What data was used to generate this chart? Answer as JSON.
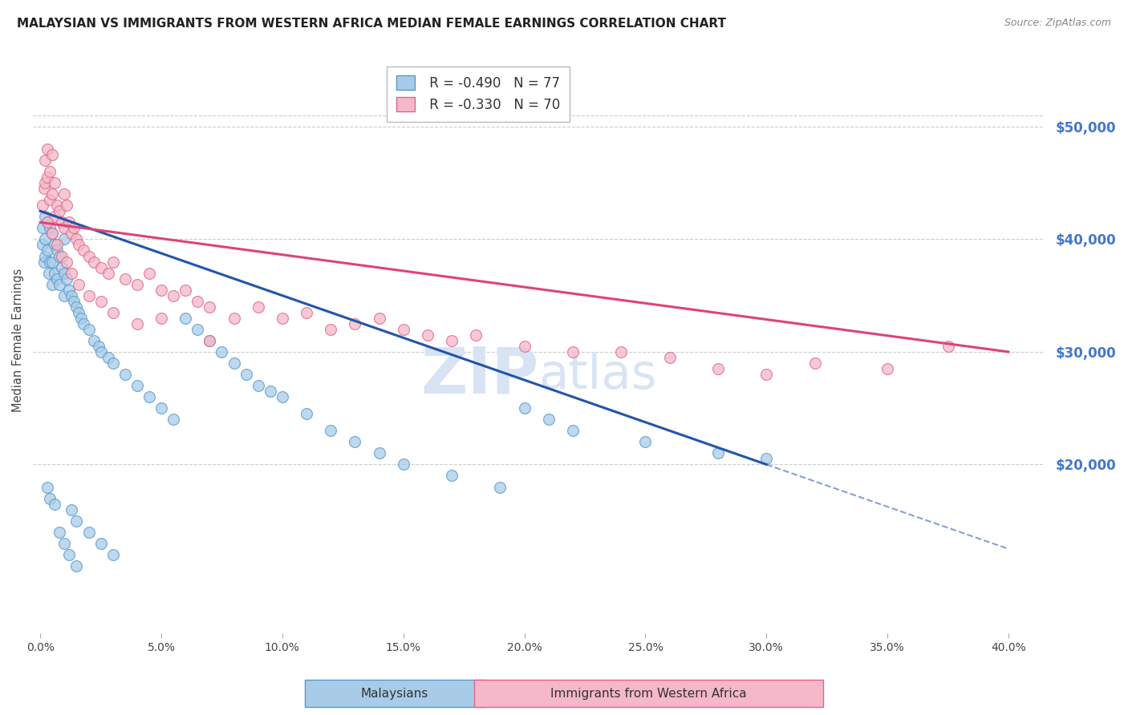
{
  "title": "MALAYSIAN VS IMMIGRANTS FROM WESTERN AFRICA MEDIAN FEMALE EARNINGS CORRELATION CHART",
  "source": "Source: ZipAtlas.com",
  "xlabel_ticks": [
    "0.0%",
    "5.0%",
    "10.0%",
    "15.0%",
    "20.0%",
    "25.0%",
    "30.0%",
    "35.0%",
    "40.0%"
  ],
  "xlabel_vals": [
    0.0,
    5.0,
    10.0,
    15.0,
    20.0,
    25.0,
    30.0,
    35.0,
    40.0
  ],
  "ylabel": "Median Female Earnings",
  "yticks": [
    20000,
    30000,
    40000,
    50000
  ],
  "ytick_labels": [
    "$20,000",
    "$30,000",
    "$40,000",
    "$50,000"
  ],
  "xlim": [
    -0.3,
    41.5
  ],
  "ylim": [
    5000,
    57000
  ],
  "r_blue": -0.49,
  "n_blue": 77,
  "r_pink": -0.33,
  "n_pink": 70,
  "blue_color": "#a8cce8",
  "pink_color": "#f5b8c8",
  "blue_edge_color": "#5599cc",
  "pink_edge_color": "#dd6688",
  "blue_line_color": "#2255aa",
  "pink_line_color": "#dd4477",
  "grid_color": "#cccccc",
  "right_label_color": "#4477cc",
  "watermark_color": "#d8e4f4",
  "background_color": "#ffffff",
  "blue_line_x0": 0.0,
  "blue_line_y0": 42500,
  "blue_line_x1": 30.0,
  "blue_line_y1": 20000,
  "pink_line_x0": 0.0,
  "pink_line_y0": 41500,
  "pink_line_x1": 40.0,
  "pink_line_y1": 30000,
  "blue_solid_end": 30.0,
  "blue_dashed_end": 40.0,
  "blue_scatter_x": [
    0.1,
    0.1,
    0.15,
    0.2,
    0.2,
    0.2,
    0.3,
    0.3,
    0.35,
    0.4,
    0.4,
    0.5,
    0.5,
    0.5,
    0.6,
    0.6,
    0.7,
    0.7,
    0.8,
    0.8,
    0.9,
    1.0,
    1.0,
    1.0,
    1.1,
    1.2,
    1.3,
    1.4,
    1.5,
    1.6,
    1.7,
    1.8,
    2.0,
    2.2,
    2.4,
    2.5,
    2.8,
    3.0,
    3.5,
    4.0,
    4.5,
    5.0,
    5.5,
    6.0,
    6.5,
    7.0,
    7.5,
    8.0,
    8.5,
    9.0,
    9.5,
    10.0,
    11.0,
    12.0,
    13.0,
    14.0,
    15.0,
    17.0,
    19.0,
    20.0,
    21.0,
    22.0,
    25.0,
    28.0,
    30.0,
    1.3,
    1.5,
    2.0,
    2.5,
    3.0,
    0.3,
    0.4,
    0.6,
    0.8,
    1.0,
    1.2,
    1.5
  ],
  "blue_scatter_y": [
    41000,
    39500,
    38000,
    42000,
    40000,
    38500,
    41500,
    39000,
    37000,
    41000,
    38000,
    40500,
    38000,
    36000,
    39500,
    37000,
    39000,
    36500,
    38500,
    36000,
    37500,
    40000,
    37000,
    35000,
    36500,
    35500,
    35000,
    34500,
    34000,
    33500,
    33000,
    32500,
    32000,
    31000,
    30500,
    30000,
    29500,
    29000,
    28000,
    27000,
    26000,
    25000,
    24000,
    33000,
    32000,
    31000,
    30000,
    29000,
    28000,
    27000,
    26500,
    26000,
    24500,
    23000,
    22000,
    21000,
    20000,
    19000,
    18000,
    25000,
    24000,
    23000,
    22000,
    21000,
    20500,
    16000,
    15000,
    14000,
    13000,
    12000,
    18000,
    17000,
    16500,
    14000,
    13000,
    12000,
    11000
  ],
  "pink_scatter_x": [
    0.1,
    0.15,
    0.2,
    0.2,
    0.3,
    0.3,
    0.4,
    0.4,
    0.5,
    0.5,
    0.6,
    0.6,
    0.7,
    0.8,
    0.9,
    1.0,
    1.0,
    1.1,
    1.2,
    1.3,
    1.4,
    1.5,
    1.6,
    1.8,
    2.0,
    2.2,
    2.5,
    2.8,
    3.0,
    3.5,
    4.0,
    4.5,
    5.0,
    5.5,
    6.0,
    6.5,
    7.0,
    8.0,
    9.0,
    10.0,
    11.0,
    12.0,
    13.0,
    14.0,
    15.0,
    16.0,
    17.0,
    18.0,
    20.0,
    22.0,
    24.0,
    26.0,
    28.0,
    30.0,
    32.0,
    35.0,
    37.5,
    0.3,
    0.5,
    0.7,
    0.9,
    1.1,
    1.3,
    1.6,
    2.0,
    2.5,
    3.0,
    4.0,
    5.0,
    7.0
  ],
  "pink_scatter_y": [
    43000,
    44500,
    47000,
    45000,
    48000,
    45500,
    46000,
    43500,
    47500,
    44000,
    45000,
    42000,
    43000,
    42500,
    41500,
    44000,
    41000,
    43000,
    41500,
    40500,
    41000,
    40000,
    39500,
    39000,
    38500,
    38000,
    37500,
    37000,
    38000,
    36500,
    36000,
    37000,
    35500,
    35000,
    35500,
    34500,
    34000,
    33000,
    34000,
    33000,
    33500,
    32000,
    32500,
    33000,
    32000,
    31500,
    31000,
    31500,
    30500,
    30000,
    30000,
    29500,
    28500,
    28000,
    29000,
    28500,
    30500,
    41500,
    40500,
    39500,
    38500,
    38000,
    37000,
    36000,
    35000,
    34500,
    33500,
    32500,
    33000,
    31000
  ]
}
